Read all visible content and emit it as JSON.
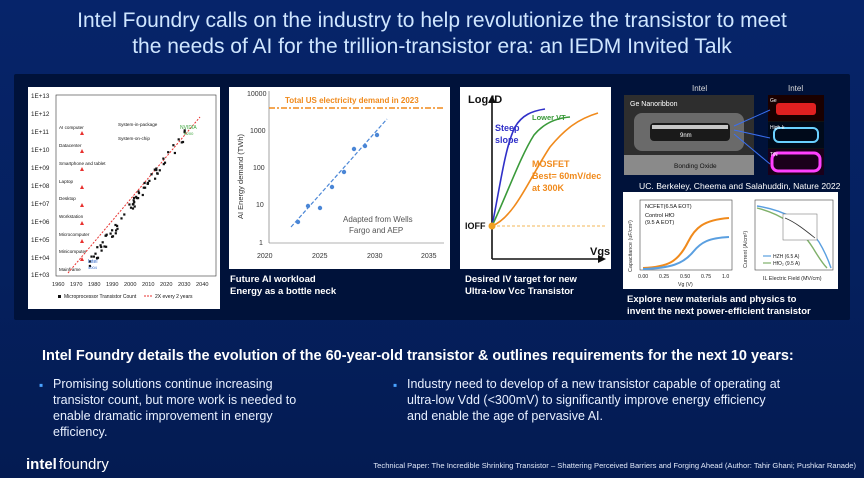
{
  "title": {
    "line1": "Intel Foundry calls on the industry to help revolutionize the transistor to meet",
    "line2": "the needs of AI for the trillion-transistor era: an IEDM Invited Talk"
  },
  "colors": {
    "background": "#05205e",
    "accent_bullet": "#4aa3ff",
    "panel": "#00123a"
  },
  "fig1": {
    "y_ticks": [
      "1E+13",
      "1E+12",
      "1E+11",
      "1E+10",
      "1E+09",
      "1E+08",
      "1E+07",
      "1E+06",
      "1E+05",
      "1E+04",
      "1E+03"
    ],
    "x_ticks": [
      "1960",
      "1970",
      "1980",
      "1990",
      "2000",
      "2010",
      "2020",
      "2030",
      "2040"
    ],
    "labels": [
      "AI computer",
      "Datacenter",
      "Smartphone and tablet",
      "Laptop",
      "Desktop",
      "Workstation",
      "Microcomputer",
      "Minicomputer",
      "Mainframe"
    ],
    "annot_package": "System-in-package",
    "annot_chip": "System-on-chip",
    "nvidia": "NVIDIA",
    "nvidia_sub": "B200",
    "intel": "Intel",
    "intel_sub": "4004",
    "legend_count": "Microprocessor Transistor Count",
    "legend_trend": "2X every 2 years"
  },
  "fig2": {
    "y_label": "AI Energy demand (TWh)",
    "y_ticks": [
      "10000",
      "1000",
      "100",
      "10",
      "1"
    ],
    "x_ticks": [
      "2020",
      "2025",
      "2030",
      "2035"
    ],
    "ref_label": "Total US electricity demand in 2023",
    "source1": "Adapted from Wells",
    "source2": "Fargo and AEP",
    "caption1": "Future AI workload",
    "caption2": "Energy as a bottle neck"
  },
  "fig3": {
    "y_label": "Log ID",
    "x_label": "Vgs",
    "steep1": "Steep",
    "steep2": "slope",
    "lower_vt": "Lower VT",
    "mosfet1": "MOSFET",
    "mosfet2": "Best= 60mV/dec",
    "mosfet3": "at 300K",
    "ioff": "IOFF",
    "caption1": "Desired IV target for new",
    "caption2": "Ultra-low Vcc Transistor"
  },
  "fig4": {
    "intel_left": "Intel",
    "intel_right": "Intel",
    "nanoribbon": "Ge Nanoribbon",
    "dim": "9nm",
    "bonding": "Bonding Oxide",
    "ge": "Ge",
    "highk": "High-k",
    "tin": "TiN",
    "credit": "UC. Berkeley, Cheema and Salahuddin, Nature  2022",
    "ncfet": "NCFET(6.5A EOT)",
    "control1": "Control HfO",
    "control2": "(9.5 A EOT)",
    "cap_axis": "Capacitance (uF/cm²)",
    "cap_xticks": [
      "0.00",
      "0.25",
      "0.50",
      "0.75",
      "1.0"
    ],
    "cap_xlabel": "Vg (V)",
    "cur_axis": "Current (A/cm²)",
    "cur_xlabel": "IL Electric Field (MV/cm)",
    "legend_hzh": "HZH (6.5 A)",
    "legend_hfo": "HfO₂ (9.5 A)",
    "caption1": "Explore new materials and physics to",
    "caption2": "invent  the next power-efficient transistor"
  },
  "subhead": "Intel Foundry details the evolution of the 60-year-old transistor & outlines requirements for the next 10 years:",
  "bullets": {
    "left": [
      "Promising solutions continue increasing",
      "transistor count, but more work is needed to",
      "enable dramatic improvement in energy",
      "efficiency."
    ],
    "right": [
      "Industry need to develop of a new transistor capable of operating at",
      "ultra-low Vdd (<300mV) to significantly improve energy efficiency",
      "and enable the age of pervasive AI."
    ]
  },
  "logo": {
    "part1": "intel",
    "part2": "foundry"
  },
  "footer": "Technical Paper: The Incredible Shrinking Transistor – Shattering Perceived Barriers and Forging Ahead (Author: Tahir Ghani; Pushkar Ranade)"
}
